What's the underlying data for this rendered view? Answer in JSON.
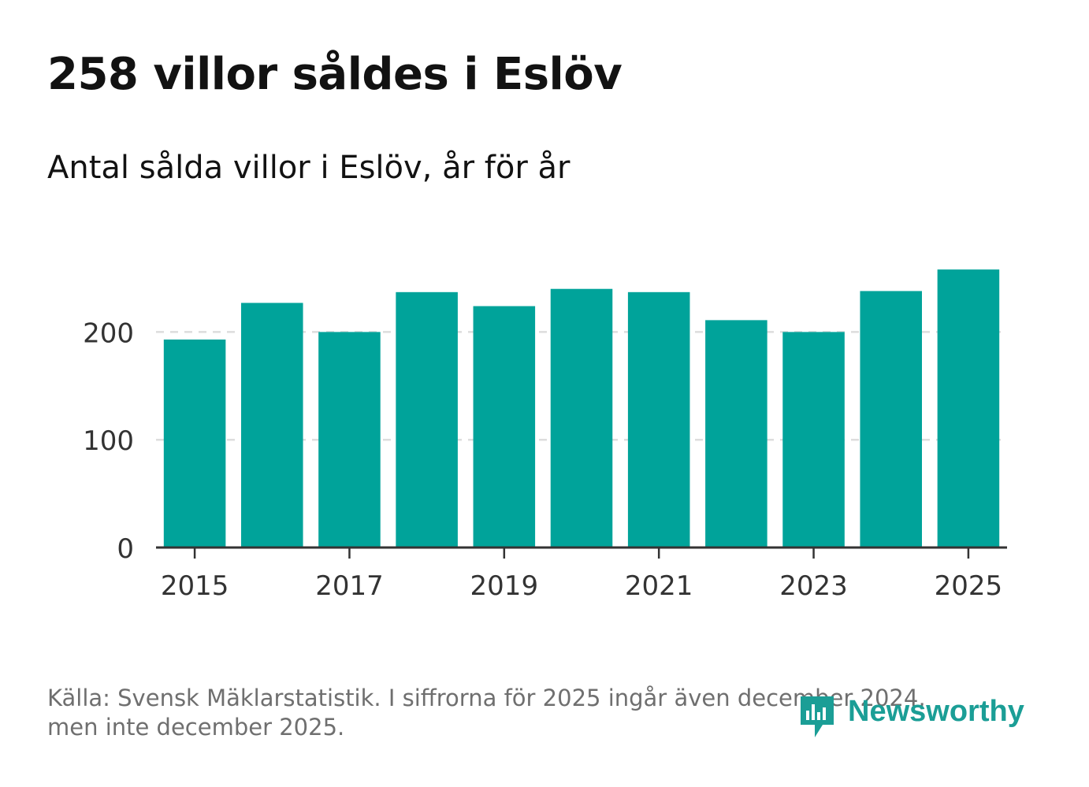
{
  "title": "258 villor såldes i Eslöv",
  "subtitle": "Antal sålda villor i Eslöv, år för år",
  "footnote_line1": "Källa: Svensk Mäklarstatistik. I siffrorna för 2025 ingår även december 2024,",
  "footnote_line2": "men inte december 2025.",
  "logo_text": "Newsworthy",
  "colors": {
    "bar": "#00a39a",
    "grid": "#dddddd",
    "axis": "#333333",
    "logo": "#1b9e96"
  },
  "chart_data": {
    "type": "bar",
    "title": "258 villor såldes i Eslöv",
    "subtitle": "Antal sålda villor i Eslöv, år för år",
    "xlabel": "",
    "ylabel": "",
    "categories": [
      "2015",
      "2016",
      "2017",
      "2018",
      "2019",
      "2020",
      "2021",
      "2022",
      "2023",
      "2024",
      "2025"
    ],
    "values": [
      193,
      227,
      200,
      237,
      224,
      240,
      237,
      211,
      200,
      238,
      258
    ],
    "ylim": [
      0,
      280
    ],
    "yticks": [
      0,
      100,
      200
    ],
    "xtick_labels": [
      "2015",
      "2017",
      "2019",
      "2021",
      "2023",
      "2025"
    ],
    "grid": "horizontal-dashed"
  }
}
